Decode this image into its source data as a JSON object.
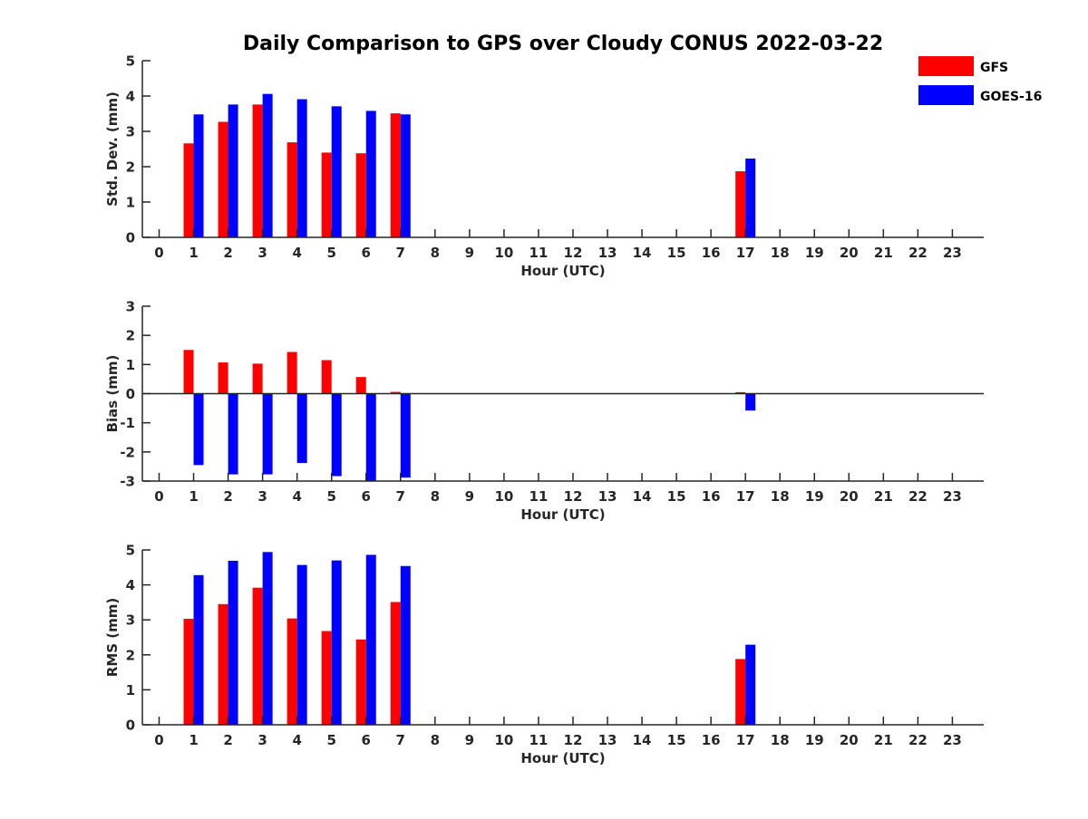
{
  "title": "Daily Comparison to GPS over Cloudy CONUS 2022-03-22",
  "legend": {
    "placement": "top-right",
    "items": [
      {
        "label": "GFS",
        "color": "#ff0000"
      },
      {
        "label": "GOES-16",
        "color": "#0000ff"
      }
    ]
  },
  "chart_data": [
    {
      "type": "bar",
      "xlabel": "Hour (UTC)",
      "ylabel": "Std. Dev. (mm)",
      "ylim": [
        0,
        5
      ],
      "yticks": [
        "0",
        "1",
        "2",
        "3",
        "4",
        "5"
      ],
      "xticks": [
        "0",
        "1",
        "2",
        "3",
        "4",
        "5",
        "6",
        "7",
        "8",
        "9",
        "10",
        "11",
        "12",
        "13",
        "14",
        "15",
        "16",
        "17",
        "18",
        "19",
        "20",
        "21",
        "22",
        "23"
      ],
      "x": [
        0,
        1,
        2,
        3,
        4,
        5,
        6,
        7,
        8,
        9,
        10,
        11,
        12,
        13,
        14,
        15,
        16,
        17,
        18,
        19,
        20,
        21,
        22,
        23
      ],
      "series": [
        {
          "name": "GFS",
          "color": "#ff0000",
          "values": [
            null,
            2.66,
            3.27,
            3.76,
            2.69,
            2.4,
            2.38,
            3.51,
            null,
            null,
            null,
            null,
            null,
            null,
            null,
            null,
            null,
            1.87,
            null,
            null,
            null,
            null,
            null,
            null
          ]
        },
        {
          "name": "GOES-16",
          "color": "#0000ff",
          "values": [
            null,
            3.48,
            3.76,
            4.06,
            3.91,
            3.71,
            3.58,
            3.48,
            null,
            null,
            null,
            null,
            null,
            null,
            null,
            null,
            null,
            2.23,
            null,
            null,
            null,
            null,
            null,
            null
          ]
        }
      ]
    },
    {
      "type": "bar",
      "xlabel": "Hour (UTC)",
      "ylabel": "Bias (mm)",
      "ylim": [
        -3,
        3
      ],
      "yticks": [
        "-3",
        "-2",
        "-1",
        "0",
        "1",
        "2",
        "3"
      ],
      "xticks": [
        "0",
        "1",
        "2",
        "3",
        "4",
        "5",
        "6",
        "7",
        "8",
        "9",
        "10",
        "11",
        "12",
        "13",
        "14",
        "15",
        "16",
        "17",
        "18",
        "19",
        "20",
        "21",
        "22",
        "23"
      ],
      "x": [
        0,
        1,
        2,
        3,
        4,
        5,
        6,
        7,
        8,
        9,
        10,
        11,
        12,
        13,
        14,
        15,
        16,
        17,
        18,
        19,
        20,
        21,
        22,
        23
      ],
      "zero_line": true,
      "series": [
        {
          "name": "GFS",
          "color": "#ff0000",
          "values": [
            null,
            1.5,
            1.07,
            1.03,
            1.43,
            1.15,
            0.57,
            0.06,
            null,
            null,
            null,
            null,
            null,
            null,
            null,
            null,
            null,
            0.05,
            null,
            null,
            null,
            null,
            null,
            null
          ]
        },
        {
          "name": "GOES-16",
          "color": "#0000ff",
          "values": [
            null,
            -2.45,
            -2.77,
            -2.77,
            -2.38,
            -2.83,
            -3.0,
            -2.88,
            null,
            null,
            null,
            null,
            null,
            null,
            null,
            null,
            null,
            -0.58,
            null,
            null,
            null,
            null,
            null,
            null
          ]
        }
      ]
    },
    {
      "type": "bar",
      "xlabel": "Hour (UTC)",
      "ylabel": "RMS (mm)",
      "ylim": [
        0,
        5
      ],
      "yticks": [
        "0",
        "1",
        "2",
        "3",
        "4",
        "5"
      ],
      "xticks": [
        "0",
        "1",
        "2",
        "3",
        "4",
        "5",
        "6",
        "7",
        "8",
        "9",
        "10",
        "11",
        "12",
        "13",
        "14",
        "15",
        "16",
        "17",
        "18",
        "19",
        "20",
        "21",
        "22",
        "23"
      ],
      "x": [
        0,
        1,
        2,
        3,
        4,
        5,
        6,
        7,
        8,
        9,
        10,
        11,
        12,
        13,
        14,
        15,
        16,
        17,
        18,
        19,
        20,
        21,
        22,
        23
      ],
      "series": [
        {
          "name": "GFS",
          "color": "#ff0000",
          "values": [
            null,
            3.03,
            3.45,
            3.92,
            3.04,
            2.68,
            2.44,
            3.51,
            null,
            null,
            null,
            null,
            null,
            null,
            null,
            null,
            null,
            1.88,
            null,
            null,
            null,
            null,
            null,
            null
          ]
        },
        {
          "name": "GOES-16",
          "color": "#0000ff",
          "values": [
            null,
            4.28,
            4.69,
            4.94,
            4.57,
            4.7,
            4.86,
            4.54,
            null,
            null,
            null,
            null,
            null,
            null,
            null,
            null,
            null,
            2.29,
            null,
            null,
            null,
            null,
            null,
            null
          ]
        }
      ]
    }
  ]
}
